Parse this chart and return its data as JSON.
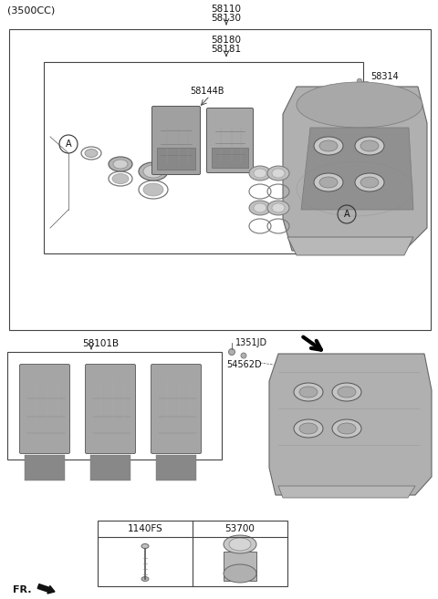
{
  "bg_color": "#ffffff",
  "fig_width": 4.8,
  "fig_height": 6.57,
  "dpi": 100,
  "title": "(3500CC)",
  "lbl_58110": "58110",
  "lbl_58130": "58130",
  "lbl_58180": "58180",
  "lbl_58181": "58181",
  "lbl_58314": "58314",
  "lbl_58144B": "58144B",
  "lbl_58101B": "58101B",
  "lbl_1351JD": "1351JD",
  "lbl_54562D": "54562D",
  "lbl_1140FS": "1140FS",
  "lbl_53700": "53700",
  "lbl_fr": "FR.",
  "lbl_A": "A"
}
